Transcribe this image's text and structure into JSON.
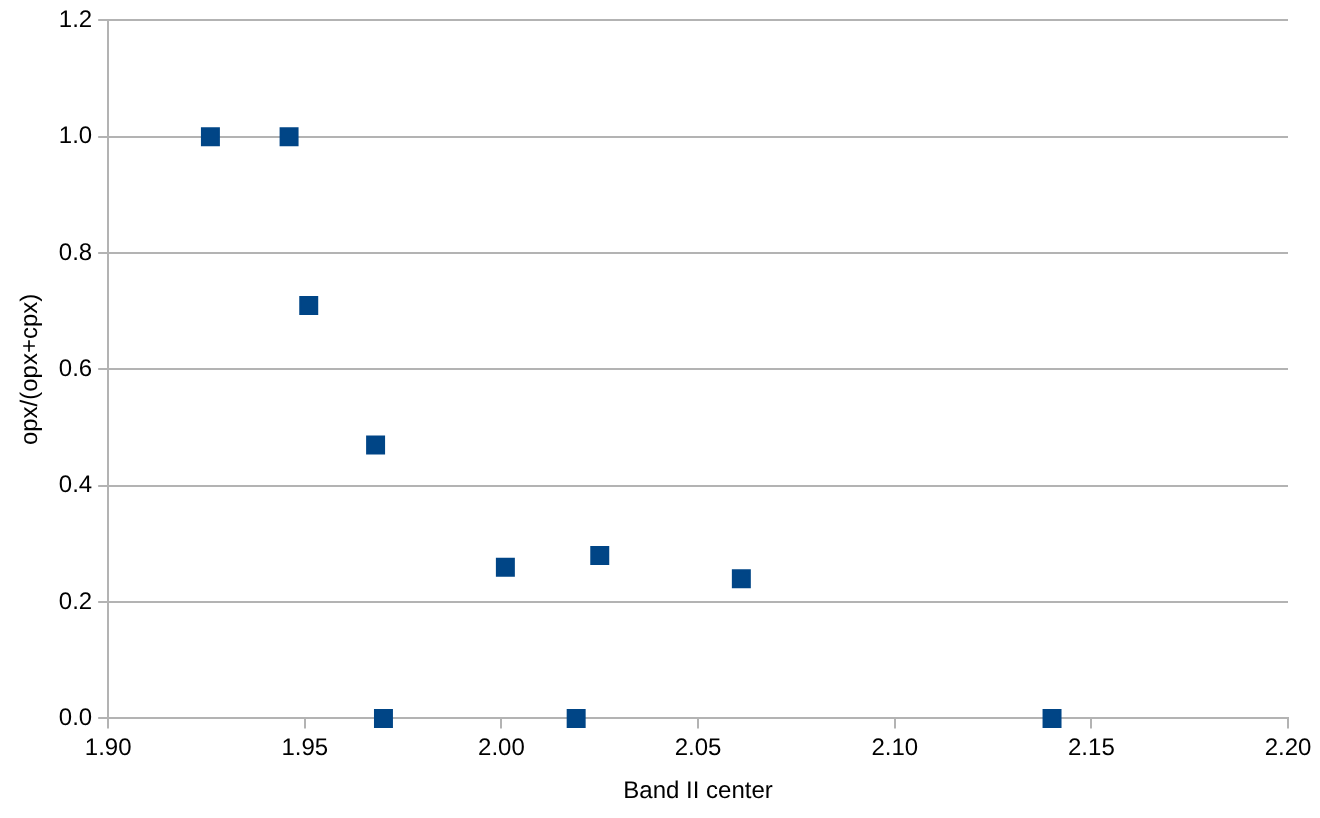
{
  "chart_data": {
    "type": "scatter",
    "xlabel": "Band II center",
    "ylabel": "opx/(opx+cpx)",
    "x": [
      1.926,
      1.946,
      1.951,
      1.968,
      1.97,
      2.001,
      2.019,
      2.025,
      2.061,
      2.14
    ],
    "series": [
      {
        "color": "#004586",
        "values": [
          1.0,
          1.0,
          0.71,
          0.47,
          0,
          0.26,
          0,
          0.28,
          0.24,
          0
        ]
      }
    ],
    "xlim": [
      1.9,
      2.2
    ],
    "xticks": [
      {
        "value": 1.9,
        "label": "1.90"
      },
      {
        "value": 1.95,
        "label": "1.95"
      },
      {
        "value": 2.0,
        "label": "2.00"
      },
      {
        "value": 2.05,
        "label": "2.05"
      },
      {
        "value": 2.1,
        "label": "2.10"
      },
      {
        "value": 2.15,
        "label": "2.15"
      },
      {
        "value": 2.2,
        "label": "2.20"
      }
    ],
    "ylim": [
      0,
      1.2
    ],
    "yticks": [
      {
        "value": 0,
        "label": "0.0"
      },
      {
        "value": 0.2,
        "label": "0.2"
      },
      {
        "value": 0.4,
        "label": "0.4"
      },
      {
        "value": 0.6,
        "label": "0.6"
      },
      {
        "value": 0.8,
        "label": "0.8"
      },
      {
        "value": 1.0,
        "label": "1.0"
      },
      {
        "value": 1.2,
        "label": "1.2"
      }
    ],
    "grid": "y",
    "legend": false,
    "marker": "square"
  }
}
